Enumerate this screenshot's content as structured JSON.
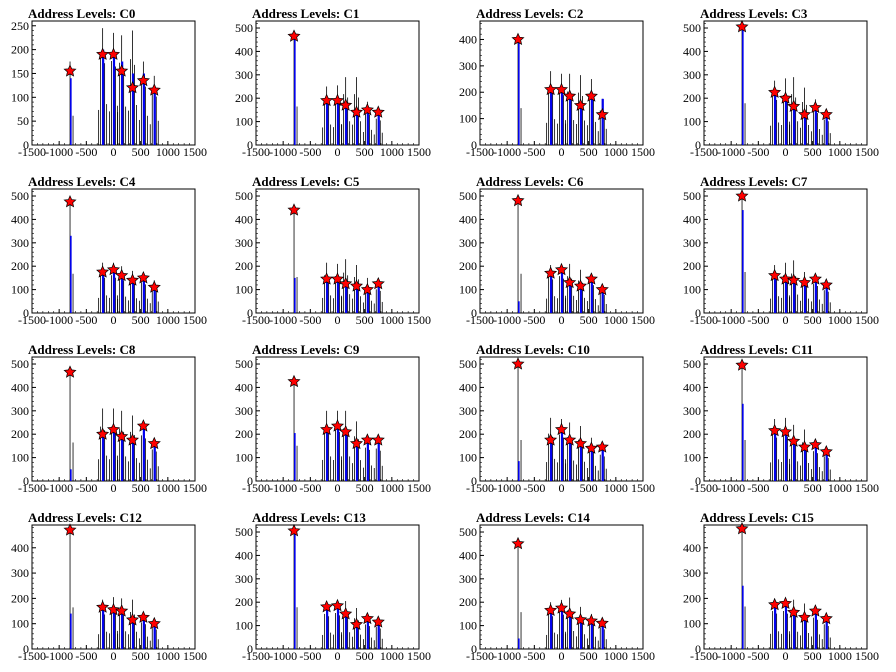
{
  "chart_data": [
    {
      "type": "bar",
      "title": "Address Levels: C0",
      "xlim": [
        -1500,
        1500
      ],
      "ylim": [
        0,
        260
      ],
      "yticks": [
        0,
        50,
        100,
        150,
        200,
        250
      ],
      "xticks": [
        -1500,
        -1000,
        -500,
        0,
        500,
        1000,
        1500
      ],
      "peaks": [
        {
          "x": -800,
          "value": 175,
          "blue_value": 140,
          "marker": 155
        },
        {
          "x": -200,
          "value": 245,
          "blue_value": 200,
          "marker": 190
        },
        {
          "x": 0,
          "value": 235,
          "blue_value": 185,
          "marker": 190
        },
        {
          "x": 150,
          "value": 230,
          "blue_value": 175,
          "marker": 155
        },
        {
          "x": 350,
          "value": 240,
          "blue_value": 150,
          "marker": 120
        },
        {
          "x": 550,
          "value": 175,
          "blue_value": 150,
          "marker": 135
        },
        {
          "x": 750,
          "value": 145,
          "blue_value": 120,
          "marker": 115
        }
      ]
    },
    {
      "type": "bar",
      "title": "Address Levels: C1",
      "xlim": [
        -1500,
        1500
      ],
      "ylim": [
        0,
        530
      ],
      "yticks": [
        0,
        100,
        200,
        300,
        400,
        500
      ],
      "xticks": [
        -1500,
        -1000,
        -500,
        0,
        500,
        1000,
        1500
      ],
      "peaks": [
        {
          "x": -800,
          "value": 470,
          "blue_value": 470,
          "marker": 465
        },
        {
          "x": -200,
          "value": 250,
          "blue_value": 190,
          "marker": 190
        },
        {
          "x": 0,
          "value": 255,
          "blue_value": 185,
          "marker": 190
        },
        {
          "x": 150,
          "value": 290,
          "blue_value": 170,
          "marker": 170
        },
        {
          "x": 350,
          "value": 290,
          "blue_value": 140,
          "marker": 140
        },
        {
          "x": 550,
          "value": 185,
          "blue_value": 150,
          "marker": 150
        },
        {
          "x": 750,
          "value": 150,
          "blue_value": 135,
          "marker": 140
        }
      ]
    },
    {
      "type": "bar",
      "title": "Address Levels: C2",
      "xlim": [
        -1500,
        1500
      ],
      "ylim": [
        0,
        470
      ],
      "yticks": [
        0,
        100,
        200,
        300,
        400
      ],
      "xticks": [
        -1500,
        -1000,
        -500,
        0,
        500,
        1000,
        1500
      ],
      "peaks": [
        {
          "x": -800,
          "value": 400,
          "blue_value": 400,
          "marker": 400
        },
        {
          "x": -200,
          "value": 280,
          "blue_value": 210,
          "marker": 210
        },
        {
          "x": 0,
          "value": 270,
          "blue_value": 210,
          "marker": 210
        },
        {
          "x": 150,
          "value": 270,
          "blue_value": 185,
          "marker": 185
        },
        {
          "x": 350,
          "value": 265,
          "blue_value": 150,
          "marker": 150
        },
        {
          "x": 550,
          "value": 250,
          "blue_value": 185,
          "marker": 185
        },
        {
          "x": 750,
          "value": 175,
          "blue_value": 175,
          "marker": 115
        }
      ]
    },
    {
      "type": "bar",
      "title": "Address Levels: C3",
      "xlim": [
        -1500,
        1500
      ],
      "ylim": [
        0,
        530
      ],
      "yticks": [
        0,
        100,
        200,
        300,
        400,
        500
      ],
      "xticks": [
        -1500,
        -1000,
        -500,
        0,
        500,
        1000,
        1500
      ],
      "peaks": [
        {
          "x": -800,
          "value": 510,
          "blue_value": 510,
          "marker": 505
        },
        {
          "x": -200,
          "value": 275,
          "blue_value": 225,
          "marker": 225
        },
        {
          "x": 0,
          "value": 285,
          "blue_value": 200,
          "marker": 200
        },
        {
          "x": 150,
          "value": 290,
          "blue_value": 165,
          "marker": 165
        },
        {
          "x": 350,
          "value": 245,
          "blue_value": 130,
          "marker": 130
        },
        {
          "x": 550,
          "value": 195,
          "blue_value": 160,
          "marker": 160
        },
        {
          "x": 750,
          "value": 145,
          "blue_value": 130,
          "marker": 130
        }
      ]
    },
    {
      "type": "bar",
      "title": "Address Levels: C4",
      "xlim": [
        -1500,
        1500
      ],
      "ylim": [
        0,
        530
      ],
      "yticks": [
        0,
        100,
        200,
        300,
        400,
        500
      ],
      "xticks": [
        -1500,
        -1000,
        -500,
        0,
        500,
        1000,
        1500
      ],
      "peaks": [
        {
          "x": -800,
          "value": 480,
          "blue_value": 330,
          "marker": 475
        },
        {
          "x": -200,
          "value": 215,
          "blue_value": 175,
          "marker": 175
        },
        {
          "x": 0,
          "value": 215,
          "blue_value": 180,
          "marker": 185
        },
        {
          "x": 150,
          "value": 200,
          "blue_value": 155,
          "marker": 160
        },
        {
          "x": 350,
          "value": 180,
          "blue_value": 150,
          "marker": 140
        },
        {
          "x": 550,
          "value": 175,
          "blue_value": 135,
          "marker": 150
        },
        {
          "x": 750,
          "value": 140,
          "blue_value": 110,
          "marker": 110
        }
      ]
    },
    {
      "type": "bar",
      "title": "Address Levels: C5",
      "xlim": [
        -1500,
        1500
      ],
      "ylim": [
        0,
        530
      ],
      "yticks": [
        0,
        100,
        200,
        300,
        400,
        500
      ],
      "xticks": [
        -1500,
        -1000,
        -500,
        0,
        500,
        1000,
        1500
      ],
      "peaks": [
        {
          "x": -800,
          "value": 440,
          "blue_value": 150,
          "marker": 440
        },
        {
          "x": -200,
          "value": 215,
          "blue_value": 150,
          "marker": 145
        },
        {
          "x": 0,
          "value": 210,
          "blue_value": 140,
          "marker": 145
        },
        {
          "x": 150,
          "value": 230,
          "blue_value": 125,
          "marker": 125
        },
        {
          "x": 350,
          "value": 205,
          "blue_value": 115,
          "marker": 115
        },
        {
          "x": 550,
          "value": 150,
          "blue_value": 100,
          "marker": 100
        },
        {
          "x": 750,
          "value": 135,
          "blue_value": 120,
          "marker": 125
        }
      ]
    },
    {
      "type": "bar",
      "title": "Address Levels: C6",
      "xlim": [
        -1500,
        1500
      ],
      "ylim": [
        0,
        530
      ],
      "yticks": [
        0,
        100,
        200,
        300,
        400,
        500
      ],
      "xticks": [
        -1500,
        -1000,
        -500,
        0,
        500,
        1000,
        1500
      ],
      "peaks": [
        {
          "x": -800,
          "value": 480,
          "blue_value": 50,
          "marker": 480
        },
        {
          "x": -200,
          "value": 205,
          "blue_value": 170,
          "marker": 170
        },
        {
          "x": 0,
          "value": 210,
          "blue_value": 185,
          "marker": 185
        },
        {
          "x": 150,
          "value": 210,
          "blue_value": 130,
          "marker": 130
        },
        {
          "x": 350,
          "value": 185,
          "blue_value": 115,
          "marker": 115
        },
        {
          "x": 550,
          "value": 170,
          "blue_value": 145,
          "marker": 145
        },
        {
          "x": 750,
          "value": 110,
          "blue_value": 100,
          "marker": 100
        }
      ]
    },
    {
      "type": "bar",
      "title": "Address Levels: C7",
      "xlim": [
        -1500,
        1500
      ],
      "ylim": [
        0,
        530
      ],
      "yticks": [
        0,
        100,
        200,
        300,
        400,
        500
      ],
      "xticks": [
        -1500,
        -1000,
        -500,
        0,
        500,
        1000,
        1500
      ],
      "peaks": [
        {
          "x": -800,
          "value": 500,
          "blue_value": 440,
          "marker": 500
        },
        {
          "x": -200,
          "value": 205,
          "blue_value": 160,
          "marker": 160
        },
        {
          "x": 0,
          "value": 215,
          "blue_value": 145,
          "marker": 145
        },
        {
          "x": 150,
          "value": 225,
          "blue_value": 140,
          "marker": 140
        },
        {
          "x": 350,
          "value": 175,
          "blue_value": 130,
          "marker": 130
        },
        {
          "x": 550,
          "value": 165,
          "blue_value": 145,
          "marker": 145
        },
        {
          "x": 750,
          "value": 130,
          "blue_value": 120,
          "marker": 120
        }
      ]
    },
    {
      "type": "bar",
      "title": "Address Levels: C8",
      "xlim": [
        -1500,
        1500
      ],
      "ylim": [
        0,
        530
      ],
      "yticks": [
        0,
        100,
        200,
        300,
        400,
        500
      ],
      "xticks": [
        -1500,
        -1000,
        -500,
        0,
        500,
        1000,
        1500
      ],
      "peaks": [
        {
          "x": -800,
          "value": 470,
          "blue_value": 50,
          "marker": 465
        },
        {
          "x": -200,
          "value": 310,
          "blue_value": 200,
          "marker": 200
        },
        {
          "x": 0,
          "value": 310,
          "blue_value": 220,
          "marker": 220
        },
        {
          "x": 150,
          "value": 300,
          "blue_value": 190,
          "marker": 190
        },
        {
          "x": 350,
          "value": 280,
          "blue_value": 175,
          "marker": 175
        },
        {
          "x": 550,
          "value": 260,
          "blue_value": 235,
          "marker": 235
        },
        {
          "x": 750,
          "value": 180,
          "blue_value": 160,
          "marker": 160
        }
      ]
    },
    {
      "type": "bar",
      "title": "Address Levels: C9",
      "xlim": [
        -1500,
        1500
      ],
      "ylim": [
        0,
        530
      ],
      "yticks": [
        0,
        100,
        200,
        300,
        400,
        500
      ],
      "xticks": [
        -1500,
        -1000,
        -500,
        0,
        500,
        1000,
        1500
      ],
      "peaks": [
        {
          "x": -800,
          "value": 430,
          "blue_value": 205,
          "marker": 425
        },
        {
          "x": -200,
          "value": 300,
          "blue_value": 220,
          "marker": 220
        },
        {
          "x": 0,
          "value": 300,
          "blue_value": 235,
          "marker": 235
        },
        {
          "x": 150,
          "value": 300,
          "blue_value": 210,
          "marker": 210
        },
        {
          "x": 350,
          "value": 255,
          "blue_value": 160,
          "marker": 160
        },
        {
          "x": 550,
          "value": 190,
          "blue_value": 175,
          "marker": 175
        },
        {
          "x": 750,
          "value": 185,
          "blue_value": 175,
          "marker": 175
        }
      ]
    },
    {
      "type": "bar",
      "title": "Address Levels: C10",
      "xlim": [
        -1500,
        1500
      ],
      "ylim": [
        0,
        530
      ],
      "yticks": [
        0,
        100,
        200,
        300,
        400,
        500
      ],
      "xticks": [
        -1500,
        -1000,
        -500,
        0,
        500,
        1000,
        1500
      ],
      "peaks": [
        {
          "x": -800,
          "value": 500,
          "blue_value": 85,
          "marker": 500
        },
        {
          "x": -200,
          "value": 270,
          "blue_value": 175,
          "marker": 175
        },
        {
          "x": 0,
          "value": 265,
          "blue_value": 220,
          "marker": 220
        },
        {
          "x": 150,
          "value": 250,
          "blue_value": 175,
          "marker": 175
        },
        {
          "x": 350,
          "value": 235,
          "blue_value": 160,
          "marker": 160
        },
        {
          "x": 550,
          "value": 185,
          "blue_value": 140,
          "marker": 140
        },
        {
          "x": 750,
          "value": 150,
          "blue_value": 140,
          "marker": 145
        }
      ]
    },
    {
      "type": "bar",
      "title": "Address Levels: C11",
      "xlim": [
        -1500,
        1500
      ],
      "ylim": [
        0,
        530
      ],
      "yticks": [
        0,
        100,
        200,
        300,
        400,
        500
      ],
      "xticks": [
        -1500,
        -1000,
        -500,
        0,
        500,
        1000,
        1500
      ],
      "peaks": [
        {
          "x": -800,
          "value": 500,
          "blue_value": 330,
          "marker": 495
        },
        {
          "x": -200,
          "value": 265,
          "blue_value": 215,
          "marker": 215
        },
        {
          "x": 0,
          "value": 270,
          "blue_value": 210,
          "marker": 210
        },
        {
          "x": 150,
          "value": 240,
          "blue_value": 170,
          "marker": 170
        },
        {
          "x": 350,
          "value": 220,
          "blue_value": 145,
          "marker": 145
        },
        {
          "x": 550,
          "value": 170,
          "blue_value": 155,
          "marker": 155
        },
        {
          "x": 750,
          "value": 140,
          "blue_value": 125,
          "marker": 125
        }
      ]
    },
    {
      "type": "bar",
      "title": "Address Levels: C12",
      "xlim": [
        -1500,
        1500
      ],
      "ylim": [
        0,
        490
      ],
      "yticks": [
        0,
        100,
        200,
        300,
        400
      ],
      "xticks": [
        -1500,
        -1000,
        -500,
        0,
        500,
        1000,
        1500
      ],
      "peaks": [
        {
          "x": -800,
          "value": 470,
          "blue_value": 140,
          "marker": 470
        },
        {
          "x": -200,
          "value": 195,
          "blue_value": 165,
          "marker": 165
        },
        {
          "x": 0,
          "value": 205,
          "blue_value": 155,
          "marker": 155
        },
        {
          "x": 150,
          "value": 200,
          "blue_value": 150,
          "marker": 150
        },
        {
          "x": 350,
          "value": 195,
          "blue_value": 115,
          "marker": 115
        },
        {
          "x": 550,
          "value": 140,
          "blue_value": 125,
          "marker": 125
        },
        {
          "x": 750,
          "value": 110,
          "blue_value": 100,
          "marker": 100
        }
      ]
    },
    {
      "type": "bar",
      "title": "Address Levels: C13",
      "xlim": [
        -1500,
        1500
      ],
      "ylim": [
        0,
        530
      ],
      "yticks": [
        0,
        100,
        200,
        300,
        400,
        500
      ],
      "xticks": [
        -1500,
        -1000,
        -500,
        0,
        500,
        1000,
        1500
      ],
      "peaks": [
        {
          "x": -800,
          "value": 510,
          "blue_value": 510,
          "marker": 505
        },
        {
          "x": -200,
          "value": 200,
          "blue_value": 180,
          "marker": 180
        },
        {
          "x": 0,
          "value": 205,
          "blue_value": 185,
          "marker": 185
        },
        {
          "x": 150,
          "value": 205,
          "blue_value": 150,
          "marker": 150
        },
        {
          "x": 350,
          "value": 175,
          "blue_value": 105,
          "marker": 105
        },
        {
          "x": 550,
          "value": 140,
          "blue_value": 125,
          "marker": 130
        },
        {
          "x": 750,
          "value": 125,
          "blue_value": 115,
          "marker": 115
        }
      ]
    },
    {
      "type": "bar",
      "title": "Address Levels: C14",
      "xlim": [
        -1500,
        1500
      ],
      "ylim": [
        0,
        530
      ],
      "yticks": [
        0,
        100,
        200,
        300,
        400,
        500
      ],
      "xticks": [
        -1500,
        -1000,
        -500,
        0,
        500,
        1000,
        1500
      ],
      "peaks": [
        {
          "x": -800,
          "value": 450,
          "blue_value": 45,
          "marker": 450
        },
        {
          "x": -200,
          "value": 200,
          "blue_value": 165,
          "marker": 165
        },
        {
          "x": 0,
          "value": 210,
          "blue_value": 175,
          "marker": 175
        },
        {
          "x": 150,
          "value": 220,
          "blue_value": 150,
          "marker": 150
        },
        {
          "x": 350,
          "value": 180,
          "blue_value": 125,
          "marker": 125
        },
        {
          "x": 550,
          "value": 150,
          "blue_value": 120,
          "marker": 120
        },
        {
          "x": 750,
          "value": 120,
          "blue_value": 110,
          "marker": 110
        }
      ]
    },
    {
      "type": "bar",
      "title": "Address Levels: C15",
      "xlim": [
        -1500,
        1500
      ],
      "ylim": [
        0,
        490
      ],
      "yticks": [
        0,
        100,
        200,
        300,
        400
      ],
      "xticks": [
        -1500,
        -1000,
        -500,
        0,
        500,
        1000,
        1500
      ],
      "peaks": [
        {
          "x": -800,
          "value": 480,
          "blue_value": 250,
          "marker": 475
        },
        {
          "x": -200,
          "value": 200,
          "blue_value": 175,
          "marker": 175
        },
        {
          "x": 0,
          "value": 200,
          "blue_value": 180,
          "marker": 180
        },
        {
          "x": 150,
          "value": 195,
          "blue_value": 145,
          "marker": 145
        },
        {
          "x": 350,
          "value": 180,
          "blue_value": 125,
          "marker": 125
        },
        {
          "x": 550,
          "value": 165,
          "blue_value": 150,
          "marker": 150
        },
        {
          "x": 750,
          "value": 130,
          "blue_value": 120,
          "marker": 120
        }
      ]
    }
  ]
}
